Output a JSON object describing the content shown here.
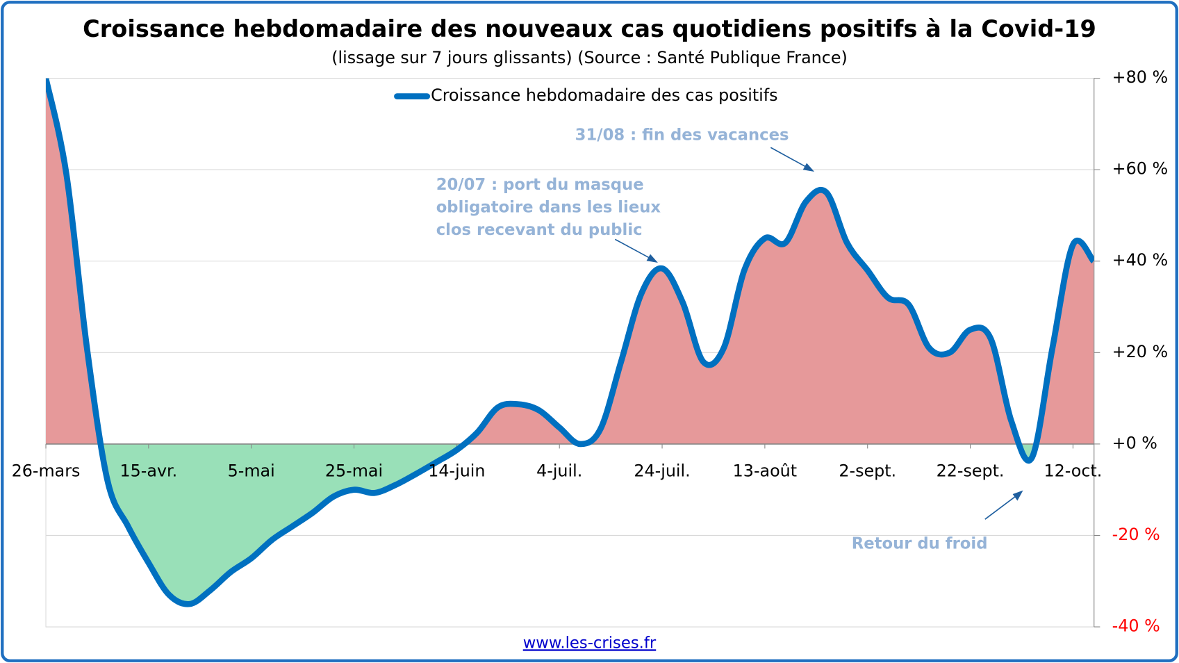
{
  "chart_data": {
    "type": "line",
    "title": "Croissance hebdomadaire des nouveaux cas quotidiens positifs à la Covid-19",
    "subtitle": "(lissage sur 7 jours glissants) (Source : Santé Publique France)",
    "categories": [
      "26-mars",
      null,
      null,
      null,
      null,
      "15-avr.",
      null,
      null,
      null,
      null,
      "5-mai",
      null,
      null,
      null,
      null,
      "25-mai",
      null,
      null,
      null,
      null,
      "14-juin",
      null,
      null,
      null,
      null,
      "4-juil.",
      null,
      null,
      null,
      null,
      "24-juil.",
      null,
      null,
      null,
      null,
      "13-août",
      null,
      null,
      null,
      null,
      "2-sept.",
      null,
      null,
      null,
      null,
      "22-sept.",
      null,
      null,
      null,
      null,
      "12-oct.",
      null
    ],
    "series": [
      {
        "name": "Croissance hebdomadaire des cas positifs",
        "color": "#0070c0",
        "values": [
          80,
          59,
          21,
          -8,
          -18,
          -26,
          -33,
          -35,
          -32,
          -28,
          -25,
          -21,
          -18,
          -15,
          -11.5,
          -10,
          -10.7,
          -9,
          -6.6,
          -4,
          -1.3,
          2.5,
          8,
          8.7,
          7.4,
          3.6,
          0,
          3.3,
          18,
          33,
          38.4,
          31,
          18,
          21,
          38,
          45,
          44,
          53,
          55,
          44,
          38,
          32,
          30.5,
          21,
          20,
          25,
          23,
          5,
          -3,
          21,
          43.6,
          40
        ]
      }
    ],
    "positive_fill": "#e6999a",
    "negative_fill": "#99e0b8",
    "ylim": [
      -40,
      80
    ],
    "yticks": [
      {
        "value": -40,
        "label": "-40 %"
      },
      {
        "value": -20,
        "label": "-20 %"
      },
      {
        "value": 0,
        "label": "+0 %"
      },
      {
        "value": 20,
        "label": "+20 %"
      },
      {
        "value": 40,
        "label": "+40 %"
      },
      {
        "value": 60,
        "label": "+60 %"
      },
      {
        "value": 80,
        "label": "+80 %"
      }
    ],
    "y_axis_side": "right",
    "negative_tick_color": "#ff0000",
    "grid": true,
    "legend": "top",
    "annotations": [
      {
        "lines": [
          "31/08 : fin des vacances"
        ]
      },
      {
        "lines": [
          "20/07 : port du masque",
          "obligatoire dans les lieux",
          "clos recevant du public"
        ]
      },
      {
        "lines": [
          "Retour du froid"
        ]
      }
    ],
    "footer": "www.les-crises.fr"
  }
}
